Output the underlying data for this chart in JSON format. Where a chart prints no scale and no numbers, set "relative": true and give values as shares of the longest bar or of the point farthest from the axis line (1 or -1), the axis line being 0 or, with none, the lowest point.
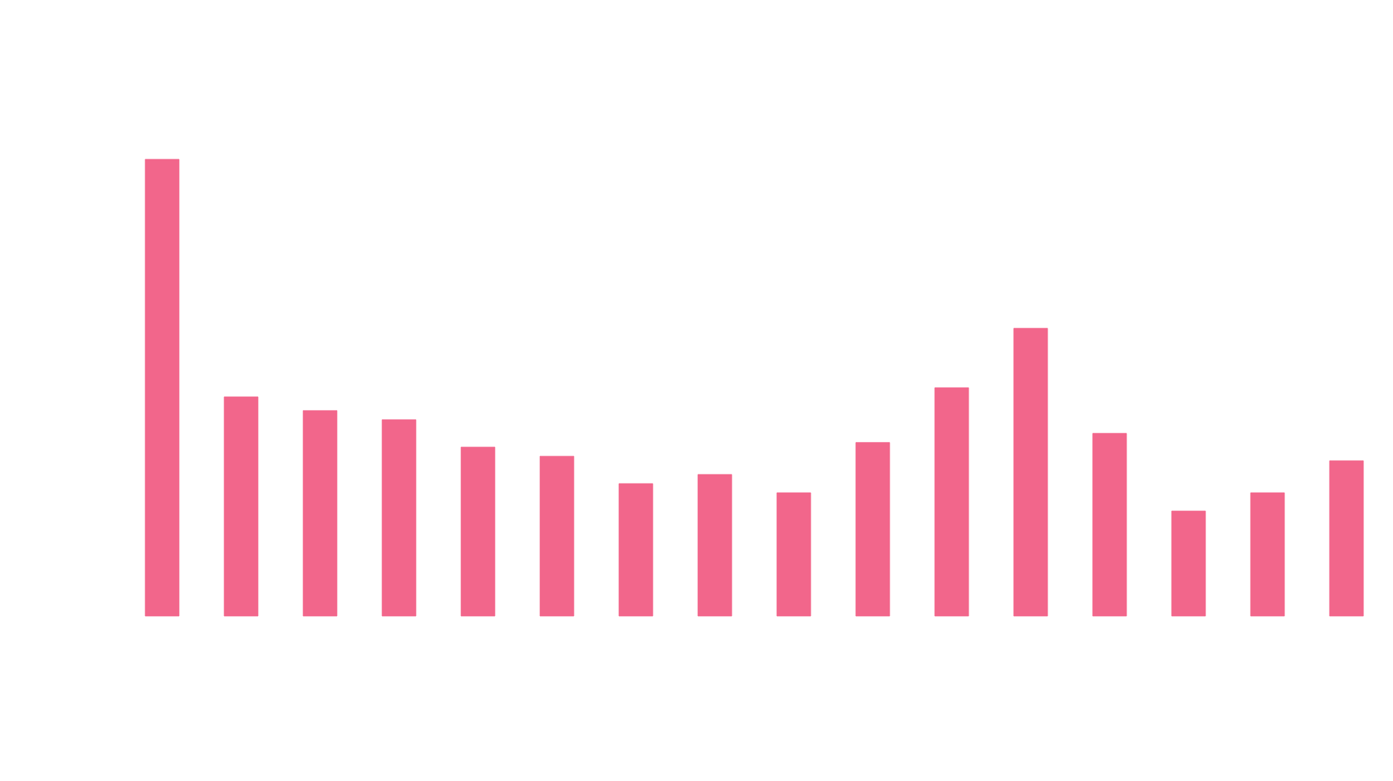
{
  "chart_data": {
    "type": "bar",
    "relative": true,
    "color": "#f2668b",
    "categories": [
      null,
      null,
      null,
      null,
      null,
      null,
      null,
      null,
      null,
      null,
      null,
      null,
      null,
      null,
      null,
      null
    ],
    "values": [
      1,
      0.48,
      0.45,
      0.43,
      0.37,
      0.35,
      0.29,
      0.31,
      0.27,
      0.38,
      0.5,
      0.63,
      0.4,
      0.23,
      0.27,
      0.34
    ]
  }
}
